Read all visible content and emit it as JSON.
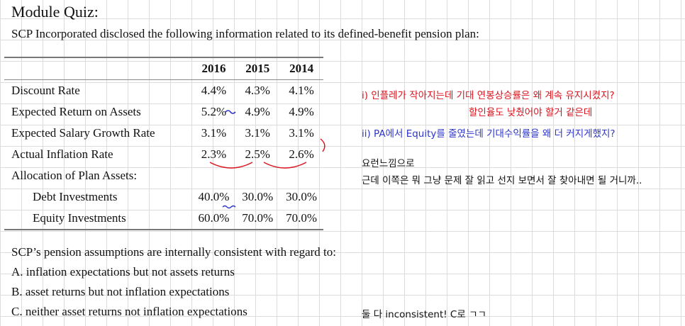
{
  "title": "Module Quiz:",
  "intro": "SCP Incorporated disclosed the following information related to its defined-benefit pension plan:",
  "table": {
    "years": [
      "2016",
      "2015",
      "2014"
    ],
    "rows": [
      {
        "label": "Discount Rate",
        "values": [
          "4.4%",
          "4.3%",
          "4.1%"
        ]
      },
      {
        "label": "Expected Return on Assets",
        "values": [
          "5.2%",
          "4.9%",
          "4.9%"
        ]
      },
      {
        "label": "Expected Salary Growth Rate",
        "values": [
          "3.1%",
          "3.1%",
          "3.1%"
        ]
      },
      {
        "label": "Actual Inflation Rate",
        "values": [
          "2.3%",
          "2.5%",
          "2.6%"
        ]
      },
      {
        "label": "Allocation of Plan Assets:",
        "values": [
          "",
          "",
          ""
        ]
      },
      {
        "label": "Debt Investments",
        "values": [
          "40.0%",
          "30.0%",
          "30.0%"
        ]
      },
      {
        "label": "Equity Investments",
        "values": [
          "60.0%",
          "70.0%",
          "70.0%"
        ]
      }
    ]
  },
  "question": "SCP’s pension assumptions are internally consistent with regard to:",
  "options": {
    "a": "A. inflation expectations but not assets returns",
    "b": "B. asset returns but not inflation expectations",
    "c": "C. neither asset returns not inflation expectations"
  },
  "notes": {
    "note1_line1": "i) 인플레가 작아지는데 기대 연봉상승률은 왜 계속 유지시켰지?",
    "note1_line2": "할인율도 낮췄어야 할거 같은데",
    "note2": "ii) PA에서 Equity를 줄였는데 기대수익률을 왜 더 커지게했지?",
    "note3_line1": "요런느낌으로",
    "note3_line2": "근데 이쪽은 뭐 그냥 문제 잘 읽고 선지 보면서 잘 찾아내면 될 거니까..",
    "answer": "둘 다 inconsistent! C로 ㄱㄱ"
  },
  "colors": {
    "red_ink": "#d8141e",
    "blue_ink": "#2d36c8"
  }
}
